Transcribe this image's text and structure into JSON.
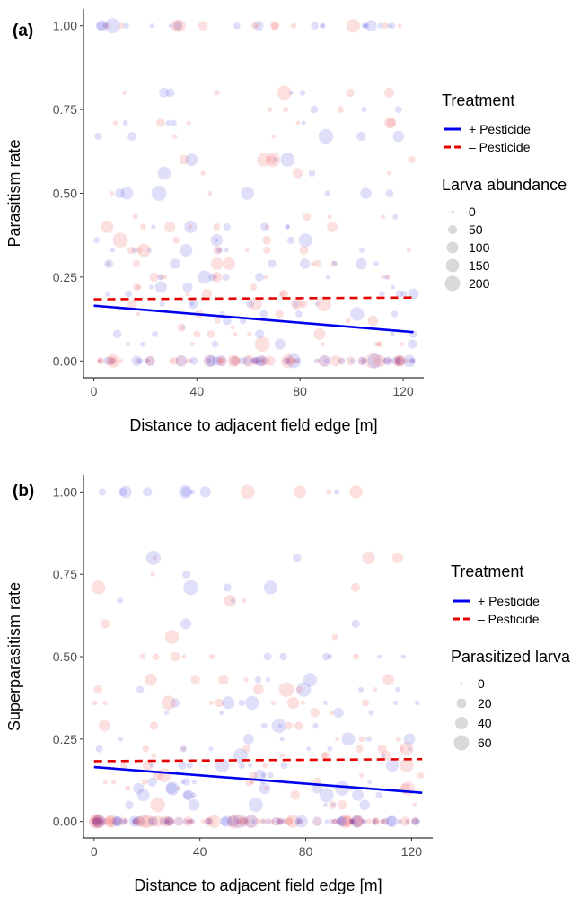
{
  "chart_data": [
    {
      "type": "scatter",
      "panel_label": "(a)",
      "xlabel": "Distance to adjacent field edge [m]",
      "ylabel": "Parasitism rate",
      "xlim": [
        -4,
        128
      ],
      "ylim": [
        -0.05,
        1.05
      ],
      "xticks": [
        "0",
        "40",
        "80",
        "120"
      ],
      "yticks": [
        "0.00",
        "0.25",
        "0.50",
        "0.75",
        "1.00"
      ],
      "legend_treatment_title": "Treatment",
      "legend_size_title": "Larva abundance",
      "size_legend": [
        "0",
        "50",
        "100",
        "150",
        "200"
      ],
      "series": [
        {
          "name": "+ Pesticide",
          "color": "#0000ee",
          "dash": "solid",
          "x": [
            0,
            124
          ],
          "y": [
            0.165,
            0.086
          ]
        },
        {
          "name": "– Pesticide",
          "color": "#e60000",
          "dash": "dashed",
          "x": [
            0,
            124
          ],
          "y": [
            0.184,
            0.189
          ]
        }
      ]
    },
    {
      "type": "scatter",
      "panel_label": "(b)",
      "xlabel": "Distance to adjacent field edge [m]",
      "ylabel": "Superparasitism rate",
      "xlim": [
        -4,
        128
      ],
      "ylim": [
        -0.05,
        1.05
      ],
      "xticks": [
        "0",
        "40",
        "80",
        "120"
      ],
      "yticks": [
        "0.00",
        "0.25",
        "0.50",
        "0.75",
        "1.00"
      ],
      "legend_treatment_title": "Treatment",
      "legend_size_title": "Parasitized larva",
      "size_legend": [
        "0",
        "20",
        "40",
        "60"
      ],
      "series": [
        {
          "name": "+ Pesticide",
          "color": "#0000ee",
          "dash": "solid",
          "x": [
            0,
            124
          ],
          "y": [
            0.165,
            0.087
          ]
        },
        {
          "name": "– Pesticide",
          "color": "#e60000",
          "dash": "dashed",
          "x": [
            0,
            124
          ],
          "y": [
            0.183,
            0.189
          ]
        }
      ]
    }
  ]
}
